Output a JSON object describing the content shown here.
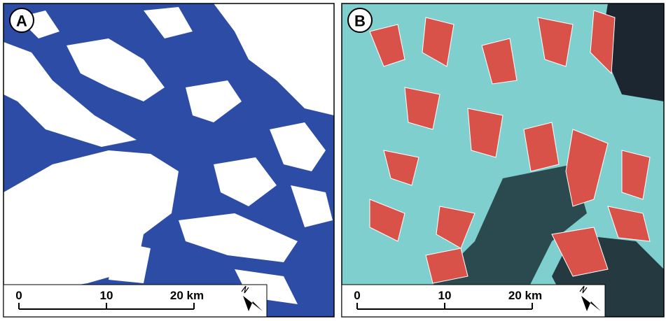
{
  "panels": [
    {
      "label": "A",
      "scale_labels": [
        "0",
        "10",
        "20 km"
      ]
    },
    {
      "label": "B",
      "scale_labels": [
        "0",
        "10",
        "20 km"
      ]
    }
  ]
}
